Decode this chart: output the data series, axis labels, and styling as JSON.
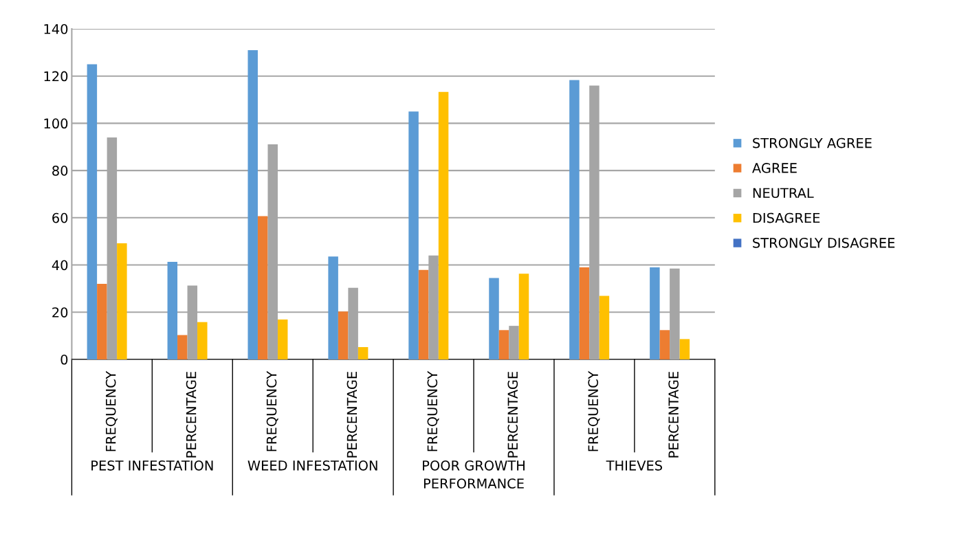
{
  "chart_data": {
    "type": "bar",
    "categories": [
      "FREQUENCY",
      "PERCENTAGE",
      "FREQUENCY",
      "PERCENTAGE",
      "FREQUENCY",
      "PERCENTAGE",
      "FREQUENCY",
      "PERCENTAGE"
    ],
    "annotations": [
      "PEST INFESTATION",
      "WEED INFESTATION",
      "POOR GROWTH PERFORMANCE",
      "THIEVES"
    ],
    "series": [
      {
        "name": "STRONGLY AGREE",
        "color": "#5b9bd5",
        "values": [
          125,
          41.3,
          131,
          43.6,
          105,
          34.5,
          118.3,
          39
        ]
      },
      {
        "name": "AGREE",
        "color": "#ed7d31",
        "values": [
          32,
          10.3,
          60.7,
          20.3,
          37.9,
          12.4,
          39,
          12.4
        ]
      },
      {
        "name": "NEUTRAL",
        "color": "#a5a5a5",
        "values": [
          94,
          31.3,
          91.1,
          30.3,
          44,
          14.2,
          116,
          38.5
        ]
      },
      {
        "name": "DISAGREE",
        "color": "#ffc000",
        "values": [
          49.2,
          15.8,
          16.9,
          5.2,
          113.3,
          36.3,
          26.9,
          8.6
        ]
      },
      {
        "name": "STRONGLY DISAGREE",
        "color": "#4472c4",
        "values": [
          0,
          0,
          0,
          0,
          0,
          0,
          0,
          0
        ]
      }
    ],
    "ylim": [
      0,
      140
    ],
    "yticks": [
      0,
      20,
      40,
      60,
      80,
      100,
      120,
      140
    ],
    "grid": "y",
    "legend": "right"
  }
}
